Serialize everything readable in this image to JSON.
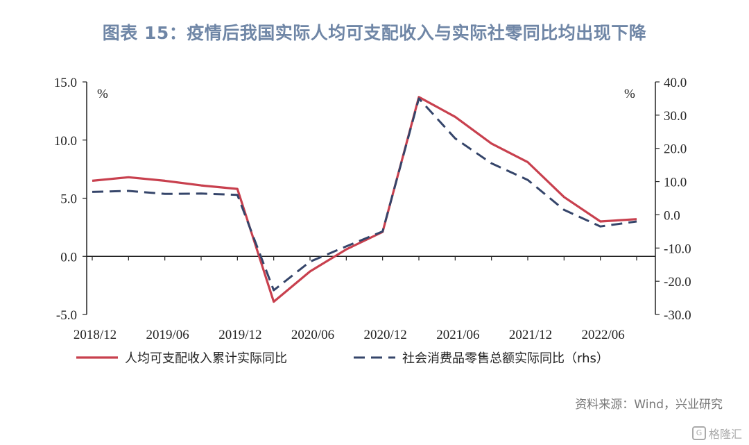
{
  "title": "图表 15：疫情后我国实际人均可支配收入与实际社零同比均出现下降",
  "source": "资料来源：Wind，兴业研究",
  "watermark": "格隆汇",
  "chart_data": {
    "type": "line",
    "x": [
      "2018/12",
      "2019/03",
      "2019/06",
      "2019/09",
      "2019/12",
      "2020/03",
      "2020/06",
      "2020/09",
      "2020/12",
      "2021/03",
      "2021/06",
      "2021/09",
      "2021/12",
      "2022/03",
      "2022/06",
      "2022/09"
    ],
    "x_tick_labels": [
      "2018/12",
      "2019/06",
      "2019/12",
      "2020/06",
      "2020/12",
      "2021/06",
      "2021/12",
      "2022/06"
    ],
    "y_left": {
      "min": -5,
      "max": 15,
      "ticks": [
        "15.0",
        "10.0",
        "5.0",
        "0.0",
        "-5.0"
      ],
      "unit": "%"
    },
    "y_right": {
      "min": -30,
      "max": 40,
      "ticks": [
        "40.0",
        "30.0",
        "20.0",
        "10.0",
        "0.0",
        "-10.0",
        "-20.0",
        "-30.0"
      ],
      "unit": "%"
    },
    "series": [
      {
        "name": "人均可支配收入累计实际同比",
        "axis": "left",
        "style": "solid",
        "color": "#c8404e",
        "values": [
          6.5,
          6.8,
          6.5,
          6.1,
          5.8,
          -3.9,
          -1.3,
          0.6,
          2.1,
          13.7,
          12.0,
          9.7,
          8.1,
          5.1,
          3.0,
          3.2
        ]
      },
      {
        "name": "社会消费品零售总额实际同比（rhs）",
        "axis": "right",
        "style": "dashed",
        "color": "#35456a",
        "values": [
          6.9,
          7.2,
          6.3,
          6.4,
          6.0,
          -22.7,
          -14.1,
          -9.5,
          -5.0,
          35.0,
          23.0,
          15.5,
          10.5,
          1.5,
          -3.5,
          -2.0
        ]
      }
    ],
    "grid": false,
    "legend_position": "bottom"
  }
}
